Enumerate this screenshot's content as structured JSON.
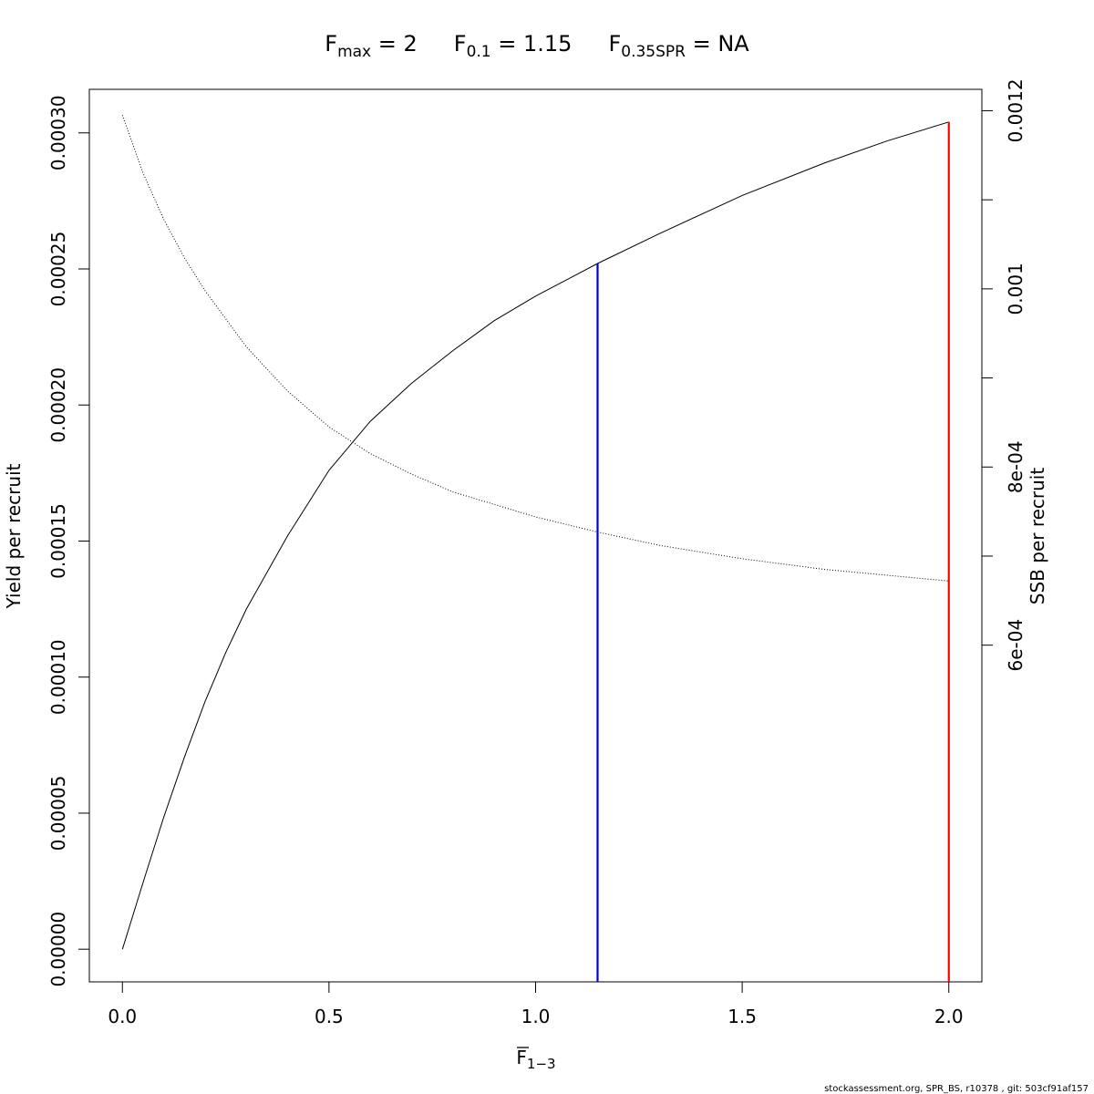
{
  "title": {
    "fmax_sub": "max",
    "fmax_rest": " = 2",
    "f01_sub": "0.1",
    "f01_rest": " = 1.15",
    "fspr_sub": "0.35SPR",
    "fspr_rest": " = NA",
    "F": "F"
  },
  "footer": "stockassessment.org, SPR_BS, r10378 , git: 503cf91af157",
  "chart_data": {
    "type": "line",
    "xlabel": {
      "base": "F",
      "sub": "1−3"
    },
    "ylabel_left": "Yield per recruit",
    "ylabel_right": "SSB per recruit",
    "xlim": [
      -0.08,
      2.08
    ],
    "ylim_left": [
      -1.2e-05,
      0.000316
    ],
    "ylim_right": [
      0.000222,
      0.001224
    ],
    "x_ticks": [
      0.0,
      0.5,
      1.0,
      1.5,
      2.0
    ],
    "x_tick_labels": [
      "0.0",
      "0.5",
      "1.0",
      "1.5",
      "2.0"
    ],
    "y_left_ticks": [
      0.0,
      5e-05,
      0.0001,
      0.00015,
      0.0002,
      0.00025,
      0.0003
    ],
    "y_left_tick_labels": [
      "0.00000",
      "0.00005",
      "0.00010",
      "0.00015",
      "0.00020",
      "0.00025",
      "0.00030"
    ],
    "y_right_ticks": [
      0.0006,
      0.0007,
      0.0008,
      0.0009,
      0.001,
      0.0011,
      0.0012
    ],
    "y_right_tick_labels": [
      "6e-04",
      "",
      "8e-04",
      "",
      "0.001",
      "",
      "0.0012"
    ],
    "series": [
      {
        "axis": "left",
        "style": "solid",
        "color": "#000000",
        "x": [
          0.0,
          0.05,
          0.1,
          0.15,
          0.2,
          0.25,
          0.3,
          0.4,
          0.5,
          0.6,
          0.7,
          0.8,
          0.9,
          1.0,
          1.15,
          1.3,
          1.5,
          1.7,
          1.85,
          2.0
        ],
        "values": [
          0.0,
          2.45e-05,
          4.85e-05,
          7.05e-05,
          9.1e-05,
          0.000109,
          0.000125,
          0.000152,
          0.000176,
          0.000194,
          0.000208,
          0.00022,
          0.000231,
          0.00024,
          0.000252,
          0.000263,
          0.000277,
          0.000289,
          0.000297,
          0.000304
        ]
      },
      {
        "axis": "right",
        "style": "dotted",
        "color": "#000000",
        "x": [
          0.0,
          0.05,
          0.1,
          0.15,
          0.2,
          0.3,
          0.4,
          0.5,
          0.6,
          0.7,
          0.8,
          1.0,
          1.15,
          1.3,
          1.5,
          1.7,
          2.0
        ],
        "values": [
          0.001195,
          0.00113,
          0.001078,
          0.001035,
          0.000998,
          0.000935,
          0.000885,
          0.000845,
          0.000815,
          0.000792,
          0.000772,
          0.000744,
          0.000727,
          0.000712,
          0.000697,
          0.000685,
          0.000672
        ]
      }
    ],
    "vlines": [
      {
        "x": 1.15,
        "axis": "left",
        "y_top": 0.000252,
        "color": "#0000cc"
      },
      {
        "x": 2.0,
        "axis": "left",
        "y_top": 0.000304,
        "color": "#ff0000"
      }
    ]
  }
}
